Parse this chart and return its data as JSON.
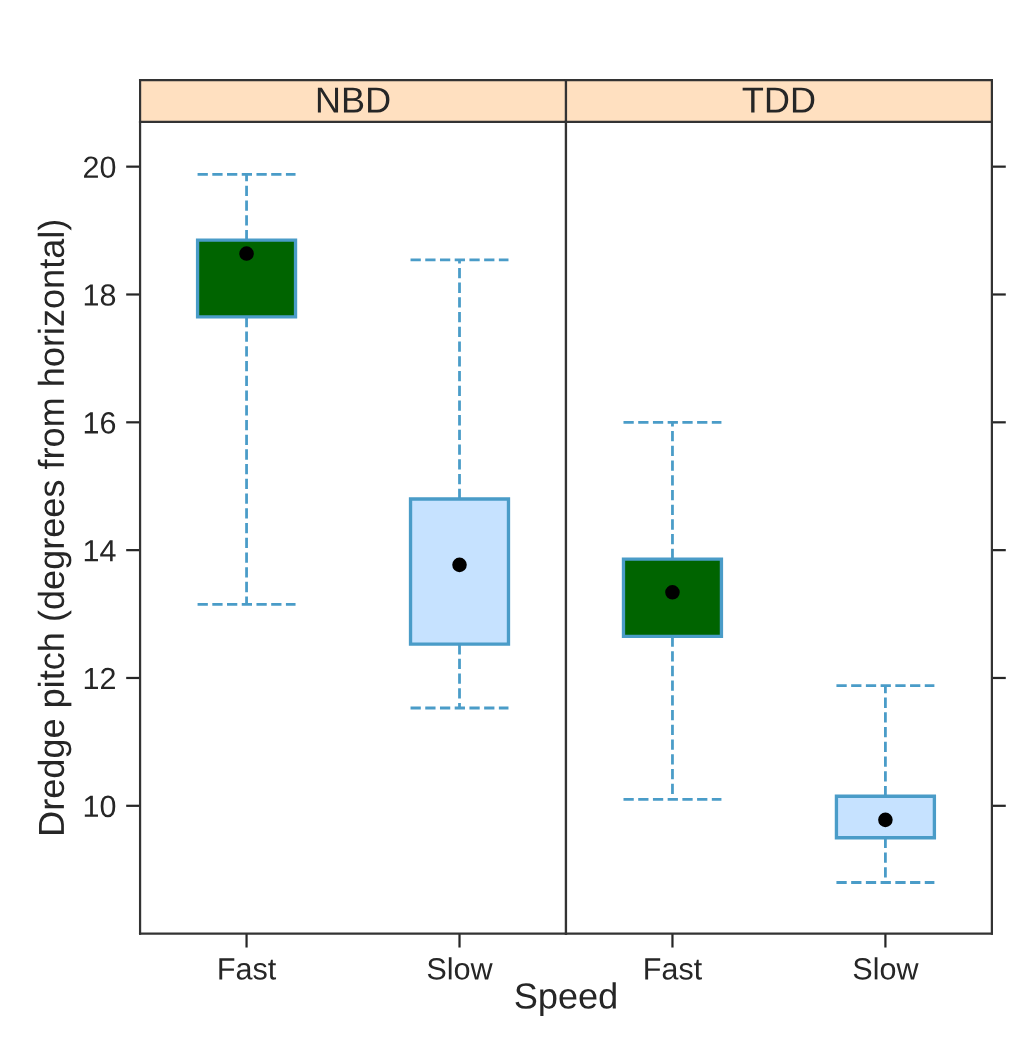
{
  "chart_data": [
    {
      "type": "box",
      "title": "NBD",
      "xlabel": "Speed",
      "ylabel": "Dredge pitch (degrees from horizontal)",
      "categories": [
        "Fast",
        "Slow"
      ],
      "colors": [
        "#006400",
        "#c6e2ff"
      ],
      "boxes": [
        {
          "low": 13.15,
          "q1": 17.65,
          "median": 18.64,
          "q3": 18.85,
          "high": 19.88
        },
        {
          "low": 11.53,
          "q1": 12.53,
          "median": 13.77,
          "q3": 14.8,
          "high": 18.54
        }
      ],
      "ylim": [
        8.0,
        20.7
      ],
      "yticks": [
        10,
        12,
        14,
        16,
        18,
        20
      ],
      "marker": "circle",
      "line_style": "dashed"
    },
    {
      "type": "box",
      "title": "TDD",
      "categories": [
        "Fast",
        "Slow"
      ],
      "colors": [
        "#006400",
        "#c6e2ff"
      ],
      "boxes": [
        {
          "low": 10.1,
          "q1": 12.65,
          "median": 13.34,
          "q3": 13.86,
          "high": 16.0
        },
        {
          "low": 8.8,
          "q1": 9.5,
          "median": 9.78,
          "q3": 10.15,
          "high": 11.88
        }
      ],
      "ylim": [
        8.0,
        20.7
      ],
      "yticks": [
        10,
        12,
        14,
        16,
        18,
        20
      ],
      "tick_labels": "x",
      "marker": "circle",
      "line_style": "dashed"
    }
  ]
}
